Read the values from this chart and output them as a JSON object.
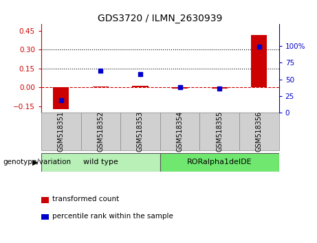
{
  "title": "GDS3720 / ILMN_2630939",
  "samples": [
    "GSM518351",
    "GSM518352",
    "GSM518353",
    "GSM518354",
    "GSM518355",
    "GSM518356"
  ],
  "transformed_count": [
    -0.175,
    0.005,
    0.012,
    -0.008,
    -0.012,
    0.415
  ],
  "percentile_rank": [
    18,
    63,
    58,
    38,
    36,
    99
  ],
  "ylim_left": [
    -0.2,
    0.5
  ],
  "ylim_right": [
    0,
    133.0
  ],
  "yticks_left": [
    -0.15,
    0.0,
    0.15,
    0.3,
    0.45
  ],
  "yticks_right": [
    0,
    25,
    50,
    75,
    100
  ],
  "hlines": [
    0.15,
    0.3
  ],
  "dashed_line_y": 0.0,
  "left_axis_color": "#cc0000",
  "right_axis_color": "#0000cc",
  "bar_color": "#cc0000",
  "dot_color": "#0000cc",
  "groups": [
    {
      "label": "wild type",
      "start": 0,
      "end": 2,
      "color": "#b8f0b8"
    },
    {
      "label": "RORalpha1delDE",
      "start": 3,
      "end": 5,
      "color": "#70e870"
    }
  ],
  "sample_box_color": "#d0d0d0",
  "legend_items": [
    "transformed count",
    "percentile rank within the sample"
  ],
  "legend_colors": [
    "#cc0000",
    "#0000cc"
  ]
}
